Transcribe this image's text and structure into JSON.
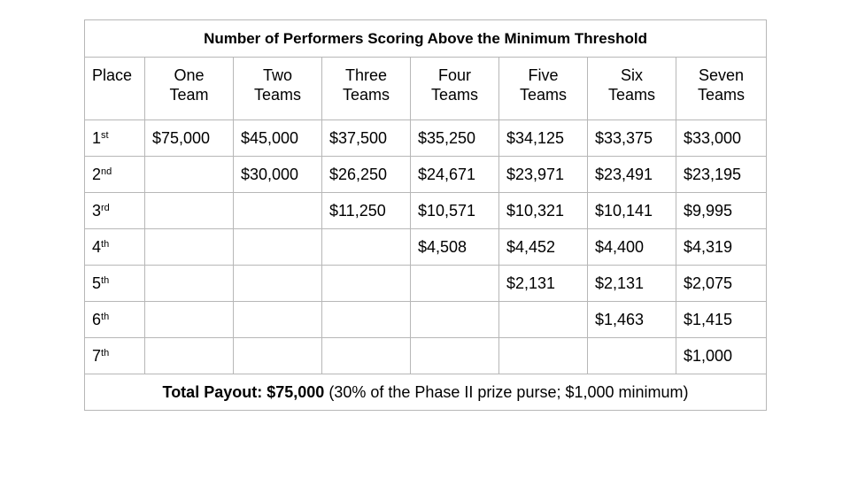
{
  "title": "Number of Performers Scoring Above the Minimum Threshold",
  "place_header": "Place",
  "columns": [
    [
      "One",
      "Team"
    ],
    [
      "Two",
      "Teams"
    ],
    [
      "Three",
      "Teams"
    ],
    [
      "Four",
      "Teams"
    ],
    [
      "Five",
      "Teams"
    ],
    [
      "Six",
      "Teams"
    ],
    [
      "Seven",
      "Teams"
    ]
  ],
  "rows": [
    {
      "place": "1",
      "suffix": "st",
      "values": [
        "$75,000",
        "$45,000",
        "$37,500",
        "$35,250",
        "$34,125",
        "$33,375",
        "$33,000"
      ]
    },
    {
      "place": "2",
      "suffix": "nd",
      "values": [
        "",
        "$30,000",
        "$26,250",
        "$24,671",
        "$23,971",
        "$23,491",
        "$23,195"
      ]
    },
    {
      "place": "3",
      "suffix": "rd",
      "values": [
        "",
        "",
        "$11,250",
        "$10,571",
        "$10,321",
        "$10,141",
        "$9,995"
      ]
    },
    {
      "place": "4",
      "suffix": "th",
      "values": [
        "",
        "",
        "",
        "$4,508",
        "$4,452",
        "$4,400",
        "$4,319"
      ]
    },
    {
      "place": "5",
      "suffix": "th",
      "values": [
        "",
        "",
        "",
        "",
        "$2,131",
        "$2,131",
        "$2,075"
      ]
    },
    {
      "place": "6",
      "suffix": "th",
      "values": [
        "",
        "",
        "",
        "",
        "",
        "$1,463",
        "$1,415"
      ]
    },
    {
      "place": "7",
      "suffix": "th",
      "values": [
        "",
        "",
        "",
        "",
        "",
        "",
        "$1,000"
      ]
    }
  ],
  "total": {
    "label": "Total Payout:",
    "amount": "$75,000",
    "note": "(30% of the Phase II prize purse; $1,000 minimum)"
  }
}
